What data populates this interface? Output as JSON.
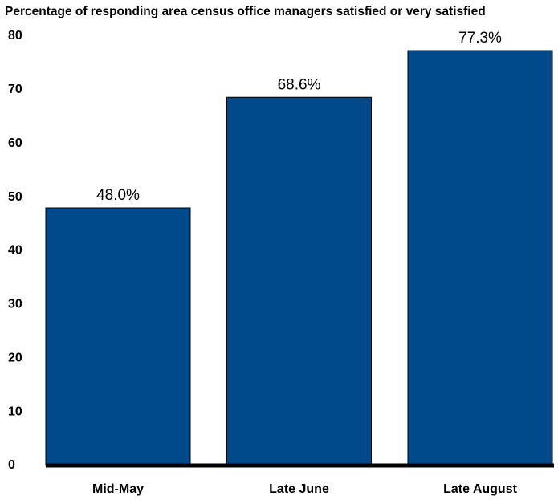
{
  "chart_data": {
    "type": "bar",
    "title": "Percentage of responding area census office managers satisfied or very satisfied",
    "categories": [
      "Mid-May",
      "Late June",
      "Late August"
    ],
    "values": [
      48.0,
      68.6,
      77.3
    ],
    "value_labels": [
      "48.0%",
      "68.6%",
      "77.3%"
    ],
    "color": "#004a8c",
    "ylim": [
      0,
      80
    ],
    "yticks": [
      0,
      10,
      20,
      30,
      40,
      50,
      60,
      70,
      80
    ],
    "grid": false
  }
}
